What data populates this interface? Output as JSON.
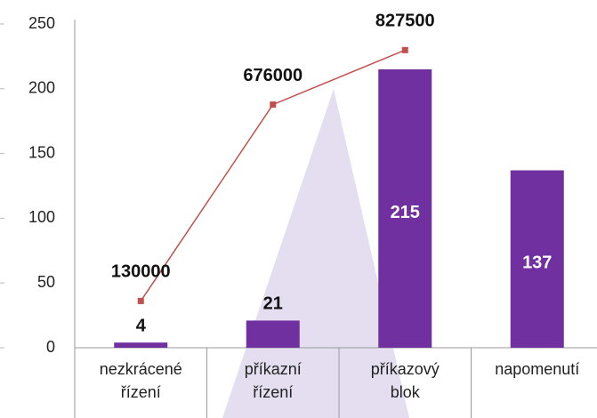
{
  "chart_data": {
    "type": "bar-line",
    "categories": [
      "nezkrácené řízení",
      "příkazní řízení",
      "příkazový blok",
      "napomenutí"
    ],
    "series": [
      {
        "type": "bar",
        "color": "#7030a0",
        "values": [
          4,
          21,
          215,
          137
        ],
        "label_inside": [
          false,
          false,
          true,
          true
        ]
      },
      {
        "type": "line",
        "axis": "y2",
        "color": "#c0504d",
        "values": [
          130000,
          676000,
          827500,
          null
        ]
      }
    ],
    "ylim": [
      0,
      250
    ],
    "yticks": [
      0,
      50,
      100,
      150,
      200,
      250
    ],
    "y2lim": [
      0,
      900000
    ]
  }
}
